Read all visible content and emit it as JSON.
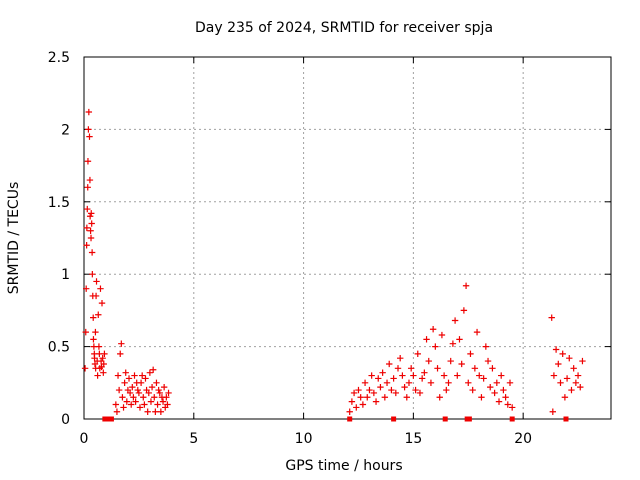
{
  "chart_data": {
    "type": "scatter",
    "title": "Day 235 of 2024, SRMTID for receiver spja",
    "xlabel": "GPS time / hours",
    "ylabel": "SRMTID / TECUs",
    "xlim": [
      0,
      24
    ],
    "ylim": [
      0,
      2.5
    ],
    "x_ticks": [
      0,
      5,
      10,
      15,
      20
    ],
    "x_tick_labels": [
      "0",
      "5",
      "10",
      "15",
      "20"
    ],
    "y_ticks": [
      0,
      0.5,
      1,
      1.5,
      2,
      2.5
    ],
    "y_tick_labels": [
      "0",
      "0.5",
      "1",
      "1.5",
      "2",
      "2.5"
    ],
    "grid": true,
    "marker": "plus",
    "color": "#ee0000",
    "zero_markers": [
      {
        "x": 0.95,
        "y": 0
      },
      {
        "x": 1.05,
        "y": 0
      },
      {
        "x": 1.15,
        "y": 0
      },
      {
        "x": 1.25,
        "y": 0
      },
      {
        "x": 12.1,
        "y": 0
      },
      {
        "x": 14.1,
        "y": 0
      },
      {
        "x": 16.45,
        "y": 0
      },
      {
        "x": 17.45,
        "y": 0
      },
      {
        "x": 17.55,
        "y": 0
      },
      {
        "x": 19.5,
        "y": 0
      },
      {
        "x": 21.95,
        "y": 0
      }
    ],
    "series": [
      {
        "name": "SRMTID",
        "x": [
          0.05,
          0.08,
          0.1,
          0.12,
          0.13,
          0.15,
          0.17,
          0.18,
          0.2,
          0.22,
          0.25,
          0.27,
          0.28,
          0.3,
          0.32,
          0.33,
          0.35,
          0.37,
          0.38,
          0.4,
          0.42,
          0.43,
          0.45,
          0.47,
          0.48,
          0.5,
          0.52,
          0.53,
          0.55,
          0.57,
          0.6,
          0.62,
          0.65,
          0.68,
          0.7,
          0.72,
          0.75,
          0.78,
          0.8,
          0.82,
          0.85,
          0.88,
          0.9,
          0.93,
          1.45,
          1.5,
          1.55,
          1.6,
          1.65,
          1.7,
          1.75,
          1.8,
          1.85,
          1.9,
          1.95,
          2.0,
          2.05,
          2.1,
          2.15,
          2.2,
          2.25,
          2.3,
          2.35,
          2.4,
          2.45,
          2.5,
          2.55,
          2.6,
          2.65,
          2.7,
          2.75,
          2.8,
          2.85,
          2.9,
          2.95,
          3.0,
          3.05,
          3.1,
          3.15,
          3.2,
          3.25,
          3.3,
          3.35,
          3.4,
          3.45,
          3.5,
          3.55,
          3.6,
          3.65,
          3.7,
          3.75,
          3.8,
          3.85,
          12.1,
          12.2,
          12.3,
          12.4,
          12.5,
          12.6,
          12.7,
          12.8,
          12.9,
          13.0,
          13.1,
          13.2,
          13.3,
          13.4,
          13.5,
          13.6,
          13.7,
          13.8,
          13.9,
          14.0,
          14.1,
          14.2,
          14.3,
          14.4,
          14.5,
          14.6,
          14.7,
          14.8,
          14.9,
          15.0,
          15.1,
          15.2,
          15.3,
          15.4,
          15.5,
          15.6,
          15.7,
          15.8,
          15.9,
          16.0,
          16.1,
          16.2,
          16.3,
          16.4,
          16.5,
          16.6,
          16.7,
          16.8,
          16.9,
          17.0,
          17.1,
          17.2,
          17.3,
          17.4,
          17.5,
          17.6,
          17.7,
          17.8,
          17.9,
          18.0,
          18.1,
          18.2,
          18.3,
          18.4,
          18.5,
          18.6,
          18.7,
          18.8,
          18.9,
          19.0,
          19.1,
          19.2,
          19.3,
          19.4,
          19.5,
          21.3,
          21.35,
          21.4,
          21.5,
          21.6,
          21.7,
          21.8,
          21.9,
          22.0,
          22.1,
          22.2,
          22.3,
          22.4,
          22.5,
          22.6,
          22.7
        ],
        "y": [
          0.35,
          0.6,
          0.9,
          1.2,
          1.32,
          1.45,
          1.6,
          1.78,
          2.0,
          2.12,
          1.95,
          1.65,
          1.4,
          1.3,
          1.25,
          1.42,
          1.35,
          1.15,
          1.0,
          0.85,
          0.7,
          0.55,
          0.5,
          0.45,
          0.42,
          0.38,
          0.6,
          0.35,
          0.85,
          0.95,
          0.4,
          0.3,
          0.72,
          0.5,
          0.45,
          0.35,
          0.9,
          0.4,
          0.36,
          0.8,
          0.42,
          0.32,
          0.38,
          0.45,
          0.1,
          0.05,
          0.3,
          0.2,
          0.45,
          0.52,
          0.15,
          0.08,
          0.25,
          0.32,
          0.12,
          0.2,
          0.28,
          0.18,
          0.1,
          0.22,
          0.15,
          0.3,
          0.12,
          0.25,
          0.2,
          0.18,
          0.08,
          0.25,
          0.3,
          0.15,
          0.1,
          0.28,
          0.2,
          0.05,
          0.18,
          0.32,
          0.12,
          0.22,
          0.34,
          0.15,
          0.05,
          0.25,
          0.1,
          0.2,
          0.18,
          0.05,
          0.15,
          0.12,
          0.22,
          0.08,
          0.15,
          0.1,
          0.18,
          0.05,
          0.12,
          0.18,
          0.08,
          0.2,
          0.15,
          0.1,
          0.25,
          0.15,
          0.2,
          0.3,
          0.18,
          0.12,
          0.28,
          0.22,
          0.32,
          0.15,
          0.25,
          0.38,
          0.2,
          0.28,
          0.18,
          0.35,
          0.42,
          0.3,
          0.22,
          0.15,
          0.25,
          0.35,
          0.3,
          0.2,
          0.45,
          0.18,
          0.28,
          0.32,
          0.55,
          0.4,
          0.25,
          0.62,
          0.5,
          0.35,
          0.15,
          0.58,
          0.3,
          0.2,
          0.25,
          0.4,
          0.52,
          0.68,
          0.3,
          0.55,
          0.38,
          0.75,
          0.92,
          0.25,
          0.45,
          0.2,
          0.35,
          0.6,
          0.3,
          0.15,
          0.28,
          0.5,
          0.4,
          0.22,
          0.35,
          0.18,
          0.25,
          0.12,
          0.3,
          0.2,
          0.15,
          0.1,
          0.25,
          0.08,
          0.7,
          0.05,
          0.3,
          0.48,
          0.38,
          0.25,
          0.45,
          0.15,
          0.28,
          0.42,
          0.2,
          0.35,
          0.25,
          0.3,
          0.22,
          0.4
        ]
      }
    ]
  }
}
